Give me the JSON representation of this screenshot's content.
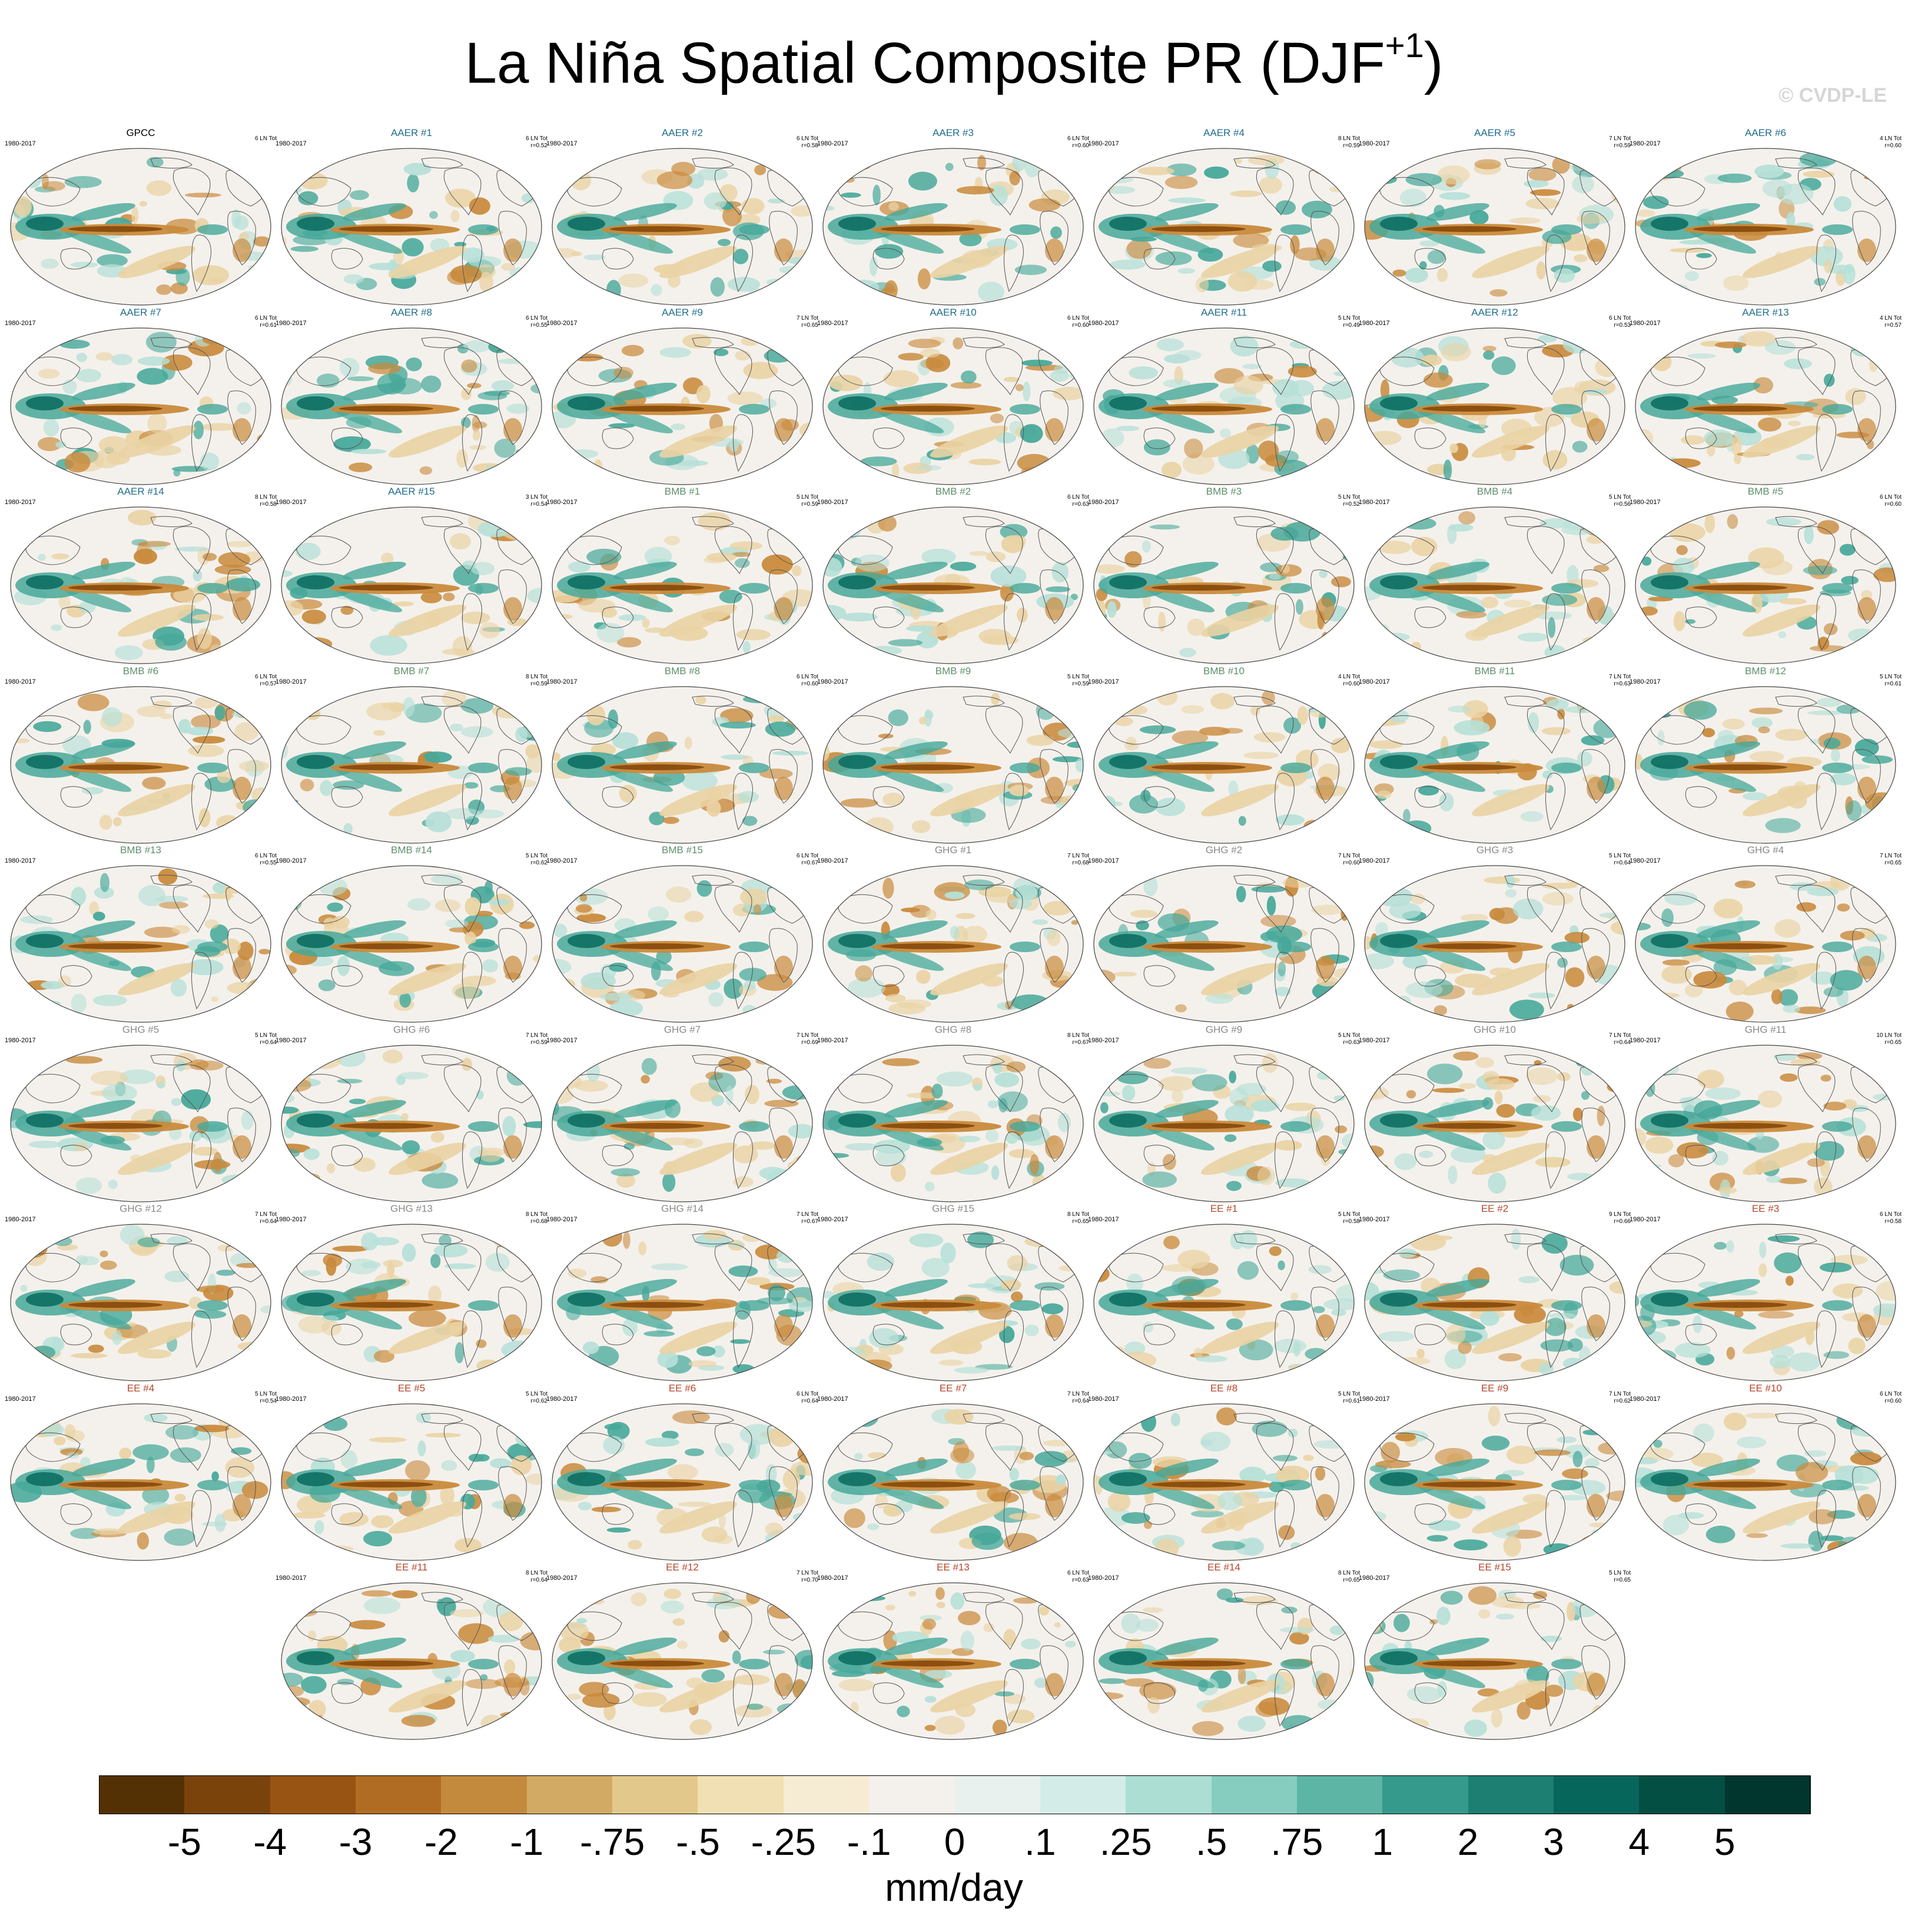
{
  "title": "La Niña Spatial Composite PR (DJF",
  "title_sup": "+1",
  "title_end": ")",
  "watermark": "© CVDP-LE",
  "group_colors": {
    "obs": "#000000",
    "AAER": "#1f6e8c",
    "BMB": "#5e8f6a",
    "GHG": "#8a8a8a",
    "EE": "#b4462a"
  },
  "map_colors": {
    "ocean": "#f4f1ec",
    "dry_strong": "#8c4f0f",
    "dry_mid": "#c98a3c",
    "dry_light": "#ead3a4",
    "wet_light": "#b6e0d8",
    "wet_mid": "#46a89a",
    "wet_strong": "#0d6e62",
    "coast": "#555555"
  },
  "panels": [
    {
      "group": "obs",
      "name": "GPCC",
      "years": "1980-2017",
      "count": "6 LN Tot",
      "r": ""
    },
    {
      "group": "AAER",
      "name": "AAER #1",
      "years": "1980-2017",
      "count": "6 LN Tot",
      "r": "r=0.52"
    },
    {
      "group": "AAER",
      "name": "AAER #2",
      "years": "1980-2017",
      "count": "6 LN Tot",
      "r": "r=0.58"
    },
    {
      "group": "AAER",
      "name": "AAER #3",
      "years": "1980-2017",
      "count": "6 LN Tot",
      "r": "r=0.60"
    },
    {
      "group": "AAER",
      "name": "AAER #4",
      "years": "1980-2017",
      "count": "8 LN Tot",
      "r": "r=0.59"
    },
    {
      "group": "AAER",
      "name": "AAER #5",
      "years": "1980-2017",
      "count": "7 LN Tot",
      "r": "r=0.59"
    },
    {
      "group": "AAER",
      "name": "AAER #6",
      "years": "1980-2017",
      "count": "4 LN Tot",
      "r": "r=0.60"
    },
    {
      "group": "AAER",
      "name": "AAER #7",
      "years": "1980-2017",
      "count": "6 LN Tot",
      "r": "r=0.61"
    },
    {
      "group": "AAER",
      "name": "AAER #8",
      "years": "1980-2017",
      "count": "6 LN Tot",
      "r": "r=0.55"
    },
    {
      "group": "AAER",
      "name": "AAER #9",
      "years": "1980-2017",
      "count": "7 LN Tot",
      "r": "r=0.65"
    },
    {
      "group": "AAER",
      "name": "AAER #10",
      "years": "1980-2017",
      "count": "6 LN Tot",
      "r": "r=0.60"
    },
    {
      "group": "AAER",
      "name": "AAER #11",
      "years": "1980-2017",
      "count": "5 LN Tot",
      "r": "r=0.49"
    },
    {
      "group": "AAER",
      "name": "AAER #12",
      "years": "1980-2017",
      "count": "6 LN Tot",
      "r": "r=0.53"
    },
    {
      "group": "AAER",
      "name": "AAER #13",
      "years": "1980-2017",
      "count": "4 LN Tot",
      "r": "r=0.57"
    },
    {
      "group": "AAER",
      "name": "AAER #14",
      "years": "1980-2017",
      "count": "8 LN Tot",
      "r": "r=0.58"
    },
    {
      "group": "AAER",
      "name": "AAER #15",
      "years": "1980-2017",
      "count": "3 LN Tot",
      "r": "r=0.54"
    },
    {
      "group": "BMB",
      "name": "BMB #1",
      "years": "1980-2017",
      "count": "5 LN Tot",
      "r": "r=0.59"
    },
    {
      "group": "BMB",
      "name": "BMB #2",
      "years": "1980-2017",
      "count": "6 LN Tot",
      "r": "r=0.63"
    },
    {
      "group": "BMB",
      "name": "BMB #3",
      "years": "1980-2017",
      "count": "5 LN Tot",
      "r": "r=0.52"
    },
    {
      "group": "BMB",
      "name": "BMB #4",
      "years": "1980-2017",
      "count": "5 LN Tot",
      "r": "r=0.56"
    },
    {
      "group": "BMB",
      "name": "BMB #5",
      "years": "1980-2017",
      "count": "6 LN Tot",
      "r": "r=0.60"
    },
    {
      "group": "BMB",
      "name": "BMB #6",
      "years": "1980-2017",
      "count": "6 LN Tot",
      "r": "r=0.57"
    },
    {
      "group": "BMB",
      "name": "BMB #7",
      "years": "1980-2017",
      "count": "8 LN Tot",
      "r": "r=0.59"
    },
    {
      "group": "BMB",
      "name": "BMB #8",
      "years": "1980-2017",
      "count": "6 LN Tot",
      "r": "r=0.60"
    },
    {
      "group": "BMB",
      "name": "BMB #9",
      "years": "1980-2017",
      "count": "5 LN Tot",
      "r": "r=0.59"
    },
    {
      "group": "BMB",
      "name": "BMB #10",
      "years": "1980-2017",
      "count": "4 LN Tot",
      "r": "r=0.60"
    },
    {
      "group": "BMB",
      "name": "BMB #11",
      "years": "1980-2017",
      "count": "7 LN Tot",
      "r": "r=0.63"
    },
    {
      "group": "BMB",
      "name": "BMB #12",
      "years": "1980-2017",
      "count": "5 LN Tot",
      "r": "r=0.61"
    },
    {
      "group": "BMB",
      "name": "BMB #13",
      "years": "1980-2017",
      "count": "6 LN Tot",
      "r": "r=0.55"
    },
    {
      "group": "BMB",
      "name": "BMB #14",
      "years": "1980-2017",
      "count": "5 LN Tot",
      "r": "r=0.62"
    },
    {
      "group": "BMB",
      "name": "BMB #15",
      "years": "1980-2017",
      "count": "6 LN Tot",
      "r": "r=0.67"
    },
    {
      "group": "GHG",
      "name": "GHG #1",
      "years": "1980-2017",
      "count": "7 LN Tot",
      "r": "r=0.68"
    },
    {
      "group": "GHG",
      "name": "GHG #2",
      "years": "1980-2017",
      "count": "7 LN Tot",
      "r": "r=0.60"
    },
    {
      "group": "GHG",
      "name": "GHG #3",
      "years": "1980-2017",
      "count": "5 LN Tot",
      "r": "r=0.64"
    },
    {
      "group": "GHG",
      "name": "GHG #4",
      "years": "1980-2017",
      "count": "7 LN Tot",
      "r": "r=0.65"
    },
    {
      "group": "GHG",
      "name": "GHG #5",
      "years": "1980-2017",
      "count": "5 LN Tot",
      "r": "r=0.64"
    },
    {
      "group": "GHG",
      "name": "GHG #6",
      "years": "1980-2017",
      "count": "7 LN Tot",
      "r": "r=0.59"
    },
    {
      "group": "GHG",
      "name": "GHG #7",
      "years": "1980-2017",
      "count": "7 LN Tot",
      "r": "r=0.69"
    },
    {
      "group": "GHG",
      "name": "GHG #8",
      "years": "1980-2017",
      "count": "8 LN Tot",
      "r": "r=0.67"
    },
    {
      "group": "GHG",
      "name": "GHG #9",
      "years": "1980-2017",
      "count": "5 LN Tot",
      "r": "r=0.63"
    },
    {
      "group": "GHG",
      "name": "GHG #10",
      "years": "1980-2017",
      "count": "7 LN Tot",
      "r": "r=0.64"
    },
    {
      "group": "GHG",
      "name": "GHG #11",
      "years": "1980-2017",
      "count": "10 LN Tot",
      "r": "r=0.65"
    },
    {
      "group": "GHG",
      "name": "GHG #12",
      "years": "1980-2017",
      "count": "7 LN Tot",
      "r": "r=0.64"
    },
    {
      "group": "GHG",
      "name": "GHG #13",
      "years": "1980-2017",
      "count": "8 LN Tot",
      "r": "r=0.68"
    },
    {
      "group": "GHG",
      "name": "GHG #14",
      "years": "1980-2017",
      "count": "7 LN Tot",
      "r": "r=0.67"
    },
    {
      "group": "GHG",
      "name": "GHG #15",
      "years": "1980-2017",
      "count": "8 LN Tot",
      "r": "r=0.65"
    },
    {
      "group": "EE",
      "name": "EE #1",
      "years": "1980-2017",
      "count": "5 LN Tot",
      "r": "r=0.58"
    },
    {
      "group": "EE",
      "name": "EE #2",
      "years": "1980-2017",
      "count": "9 LN Tot",
      "r": "r=0.66"
    },
    {
      "group": "EE",
      "name": "EE #3",
      "years": "1980-2017",
      "count": "6 LN Tot",
      "r": "r=0.58"
    },
    {
      "group": "EE",
      "name": "EE #4",
      "years": "1980-2017",
      "count": "5 LN Tot",
      "r": "r=0.54"
    },
    {
      "group": "EE",
      "name": "EE #5",
      "years": "1980-2017",
      "count": "5 LN Tot",
      "r": "r=0.62"
    },
    {
      "group": "EE",
      "name": "EE #6",
      "years": "1980-2017",
      "count": "6 LN Tot",
      "r": "r=0.64"
    },
    {
      "group": "EE",
      "name": "EE #7",
      "years": "1980-2017",
      "count": "7 LN Tot",
      "r": "r=0.64"
    },
    {
      "group": "EE",
      "name": "EE #8",
      "years": "1980-2017",
      "count": "5 LN Tot",
      "r": "r=0.61"
    },
    {
      "group": "EE",
      "name": "EE #9",
      "years": "1980-2017",
      "count": "7 LN Tot",
      "r": "r=0.62"
    },
    {
      "group": "EE",
      "name": "EE #10",
      "years": "1980-2017",
      "count": "6 LN Tot",
      "r": "r=0.60"
    },
    {
      "group": "EE",
      "name": "EE #11",
      "years": "1980-2017",
      "count": "8 LN Tot",
      "r": "r=0.64"
    },
    {
      "group": "EE",
      "name": "EE #12",
      "years": "1980-2017",
      "count": "7 LN Tot",
      "r": "r=0.70"
    },
    {
      "group": "EE",
      "name": "EE #13",
      "years": "1980-2017",
      "count": "6 LN Tot",
      "r": "r=0.63"
    },
    {
      "group": "EE",
      "name": "EE #14",
      "years": "1980-2017",
      "count": "8 LN Tot",
      "r": "r=0.65"
    },
    {
      "group": "EE",
      "name": "EE #15",
      "years": "1980-2017",
      "count": "5 LN Tot",
      "r": "r=0.65"
    }
  ],
  "colorbar": {
    "ticks": [
      "-5",
      "-4",
      "-3",
      "-2",
      "-1",
      "-.75",
      "-.5",
      "-.25",
      "-.1",
      "0",
      ".1",
      ".25",
      ".5",
      ".75",
      "1",
      "2",
      "3",
      "4",
      "5"
    ],
    "colors": [
      "#543005",
      "#7a430b",
      "#975413",
      "#b06c22",
      "#c38a3d",
      "#d3aa63",
      "#e3c88c",
      "#f0e0b4",
      "#f6ecd4",
      "#f4f1ec",
      "#e8f1ee",
      "#d4ece7",
      "#acded4",
      "#86cdc0",
      "#5db5a6",
      "#35998b",
      "#1c7f72",
      "#07665b",
      "#034f44",
      "#01362e"
    ],
    "units": "mm/day"
  }
}
